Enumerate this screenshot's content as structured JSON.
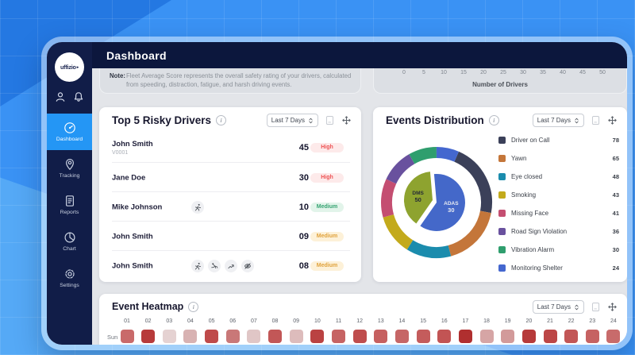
{
  "window": {
    "title": "Dashboard"
  },
  "logo": {
    "text": "uffizio"
  },
  "sidebar": {
    "items": [
      {
        "label": "Dashboard",
        "icon": "dashboard",
        "active": true
      },
      {
        "label": "Tracking",
        "icon": "tracking",
        "active": false
      },
      {
        "label": "Reports",
        "icon": "reports",
        "active": false
      },
      {
        "label": "Chart",
        "icon": "chart",
        "active": false
      },
      {
        "label": "Settings",
        "icon": "settings",
        "active": false
      }
    ]
  },
  "note": {
    "label": "Note:",
    "text": "Fleet Average Score represents the overall safety rating of your drivers, calculated from speeding, distraction, fatigue, and harsh driving events."
  },
  "top_chart_axis": {
    "ticks": [
      "0",
      "5",
      "10",
      "15",
      "20",
      "25",
      "30",
      "35",
      "40",
      "45",
      "50"
    ],
    "label": "Number of Drivers"
  },
  "risky_drivers": {
    "title": "Top 5 Risky Drivers",
    "period": "Last 7 Days",
    "rows": [
      {
        "name": "John Smith",
        "sub": "V0001",
        "icons": [],
        "score": "45",
        "level": "High",
        "level_type": "high"
      },
      {
        "name": "Jane Doe",
        "sub": "",
        "icons": [],
        "score": "30",
        "level": "High",
        "level_type": "high"
      },
      {
        "name": "Mike Johnson",
        "sub": "",
        "icons": [
          "person-run"
        ],
        "score": "10",
        "level": "Medium",
        "level_type": "medium-green"
      },
      {
        "name": "John Smith",
        "sub": "",
        "icons": [],
        "score": "09",
        "level": "Medium",
        "level_type": "medium-amber"
      },
      {
        "name": "John Smith",
        "sub": "",
        "icons": [
          "person-run",
          "person-fall",
          "trend-arrow",
          "eye-off"
        ],
        "score": "08",
        "level": "Medium",
        "level_type": "medium-amber"
      }
    ]
  },
  "events": {
    "title": "Events Distribution",
    "period": "Last 7 Days",
    "legend": [
      {
        "label": "Driver on Call",
        "value": 78,
        "color": "#3b4059"
      },
      {
        "label": "Yawn",
        "value": 65,
        "color": "#c4763a"
      },
      {
        "label": "Eye closed",
        "value": 48,
        "color": "#1b8cad"
      },
      {
        "label": "Smoking",
        "value": 43,
        "color": "#c3aa1c"
      },
      {
        "label": "Missing Face",
        "value": 41,
        "color": "#c44e71"
      },
      {
        "label": "Road Sign Violation",
        "value": 36,
        "color": "#69519e"
      },
      {
        "label": "Vibration Alarm",
        "value": 30,
        "color": "#2f9e6e"
      },
      {
        "label": "Monitoring Shelter",
        "value": 24,
        "color": "#4467cf"
      }
    ],
    "inner": [
      {
        "label": "DMS",
        "value": 50,
        "color": "#8ea32f",
        "text_color": "#252a36",
        "start": 215,
        "end": 355,
        "explode": true
      },
      {
        "label": "ADAS",
        "value": 30,
        "color": "#4468c9",
        "text_color": "#e8ebf2",
        "start": -5,
        "end": 215,
        "explode": false
      }
    ]
  },
  "heatmap": {
    "title": "Event Heatmap",
    "period": "Last 7 Days",
    "row_label": "Sun",
    "hours": [
      "01",
      "02",
      "03",
      "04",
      "05",
      "06",
      "07",
      "08",
      "09",
      "10",
      "11",
      "12",
      "13",
      "14",
      "15",
      "16",
      "17",
      "18",
      "19",
      "20",
      "21",
      "22",
      "23",
      "24"
    ],
    "cell_colors": [
      "#c96a6a",
      "#b73b3b",
      "#e5d2d2",
      "#d8b2b2",
      "#bf4a4a",
      "#c97878",
      "#e0c6c6",
      "#c25757",
      "#ddbcbc",
      "#ba4242",
      "#c66363",
      "#bf4d4d",
      "#c66060",
      "#c66666",
      "#c45c5c",
      "#c25454",
      "#b02f2f",
      "#d6a5a5",
      "#d29a9a",
      "#b63a3a",
      "#bc4646",
      "#c25656",
      "#c66262",
      "#c86b6b"
    ]
  }
}
